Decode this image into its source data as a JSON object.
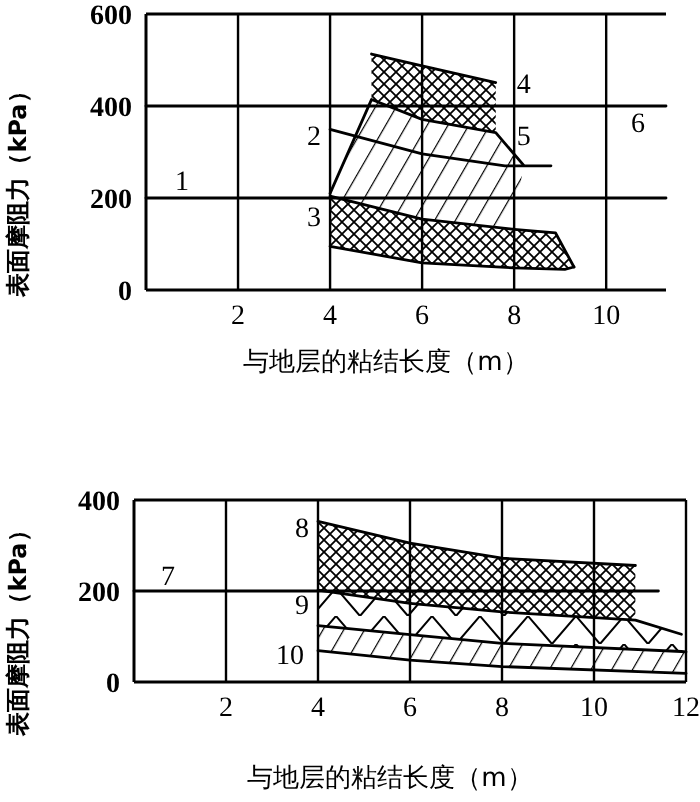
{
  "chart_data": [
    {
      "type": "line",
      "xlabel": "与地层的粘结长度（m）",
      "ylabel": "表面摩阻力（kPa）",
      "xlim": [
        0,
        11.3
      ],
      "ylim": [
        0,
        600
      ],
      "xticks": [
        2,
        4,
        6,
        8,
        10
      ],
      "yticks": [
        0,
        200,
        400,
        600
      ],
      "grid": "x",
      "series": [
        {
          "name": "4",
          "color": "#000000",
          "x": [
            4.9,
            6,
            7.6
          ],
          "values": [
            513,
            487,
            451
          ]
        },
        {
          "name": "5",
          "color": "#000000",
          "x": [
            4,
            4.9,
            6,
            7.6,
            8.2
          ],
          "values": [
            210,
            414,
            371,
            342,
            272
          ]
        },
        {
          "name": "3",
          "color": "#000000",
          "x": [
            4,
            6,
            8,
            8.9,
            9.3
          ],
          "values": [
            204,
            154,
            132,
            124,
            50
          ]
        },
        {
          "color": "#000000",
          "x": [
            4,
            6,
            8,
            9.1,
            9.3
          ],
          "values": [
            95,
            59,
            48,
            45,
            50
          ]
        },
        {
          "name": "2",
          "color": "#000000",
          "x": [
            4,
            6,
            7.8,
            8.8
          ],
          "values": [
            349,
            296,
            270,
            270
          ]
        },
        {
          "name": "1",
          "color": "#000000",
          "x": [
            0,
            11.3
          ],
          "values": [
            200,
            200
          ]
        },
        {
          "name": "6",
          "color": "#000000",
          "x": [
            0,
            11.3
          ],
          "values": [
            400,
            400
          ]
        }
      ]
    },
    {
      "type": "line",
      "xlabel": "与地层的粘结长度（m）",
      "ylabel": "表面摩阻力（kPa）",
      "xlim": [
        0,
        12
      ],
      "ylim": [
        0,
        400
      ],
      "xticks": [
        2,
        4,
        6,
        8,
        10,
        12
      ],
      "yticks": [
        0,
        200,
        400
      ],
      "grid": "x",
      "series": [
        {
          "name": "8",
          "color": "#000000",
          "x": [
            4,
            6,
            8,
            10.9
          ],
          "values": [
            353,
            305,
            272,
            256
          ]
        },
        {
          "name": "9",
          "color": "#000000",
          "x": [
            4,
            6,
            8,
            10.9,
            11.9
          ],
          "values": [
            202,
            173,
            154,
            136,
            105
          ]
        },
        {
          "name": "10",
          "color": "#000000",
          "x": [
            4,
            6,
            8,
            11.9,
            12
          ],
          "values": [
            124,
            104,
            85,
            67,
            66
          ]
        },
        {
          "color": "#000000",
          "x": [
            4,
            6,
            8,
            12
          ],
          "values": [
            69,
            48,
            34,
            19
          ]
        },
        {
          "name": "7",
          "color": "#000000",
          "x": [
            0,
            11.4
          ],
          "values": [
            200,
            200
          ]
        }
      ]
    }
  ]
}
